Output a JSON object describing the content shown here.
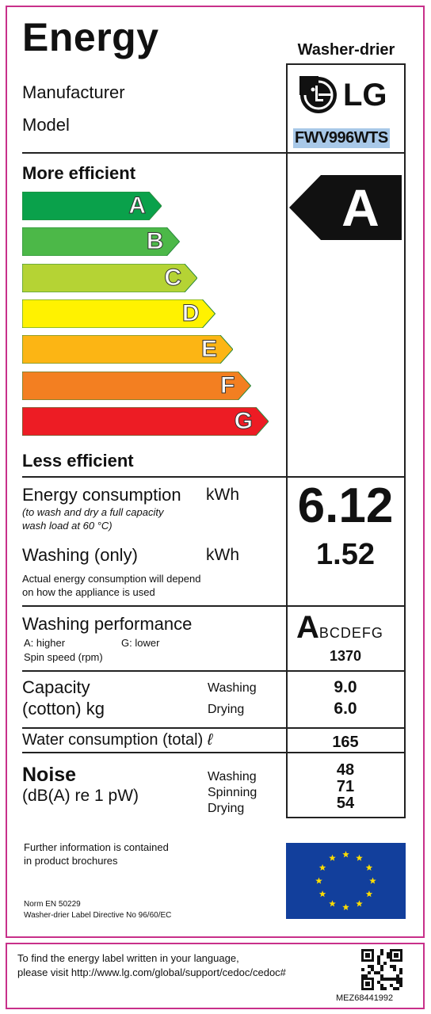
{
  "header": {
    "title": "Energy",
    "appliance_type": "Washer-drier",
    "manufacturer_label": "Manufacturer",
    "model_label": "Model",
    "brand": "LG",
    "model": "FWV996WTS"
  },
  "scale": {
    "more_efficient": "More efficient",
    "less_efficient": "Less efficient",
    "classes": [
      {
        "letter": "A",
        "color": "#0aa14b"
      },
      {
        "letter": "B",
        "color": "#4cb848"
      },
      {
        "letter": "C",
        "color": "#b5d334"
      },
      {
        "letter": "D",
        "color": "#fff200"
      },
      {
        "letter": "E",
        "color": "#fcb514"
      },
      {
        "letter": "F",
        "color": "#f37f21"
      },
      {
        "letter": "G",
        "color": "#ed1c24"
      }
    ],
    "rating": "A"
  },
  "energy": {
    "label": "Energy consumption",
    "unit": "kWh",
    "note_line1": "(to wash and dry a full capacity",
    "note_line2": "wash load at 60 °C)",
    "value": "6.12",
    "washing_label": "Washing (only)",
    "washing_unit": "kWh",
    "washing_value": "1.52",
    "actual_line1": "Actual energy consumption will depend",
    "actual_line2": "on how the appliance is used"
  },
  "performance": {
    "label": "Washing performance",
    "scale_higher": "A: higher",
    "scale_lower": "G: lower",
    "class_big": "A",
    "class_rest": "BCDEFG",
    "spin_label": "Spin speed (rpm)",
    "spin_value": "1370"
  },
  "capacity": {
    "label_line1": "Capacity",
    "label_line2": "(cotton) kg",
    "washing_label": "Washing",
    "drying_label": "Drying",
    "washing_value": "9.0",
    "drying_value": "6.0"
  },
  "water": {
    "label": "Water consumption (total)",
    "unit": "ℓ",
    "value": "165"
  },
  "noise": {
    "label": "Noise",
    "unit": "(dB(A) re 1 pW)",
    "washing_label": "Washing",
    "spinning_label": "Spinning",
    "drying_label": "Drying",
    "washing_value": "48",
    "spinning_value": "71",
    "drying_value": "54"
  },
  "footer": {
    "info_line1": "Further information is contained",
    "info_line2": "in product brochures",
    "norm": "Norm EN 50229",
    "directive": "Washer-drier Label Directive No 96/60/EC",
    "lang_line1": "To find the energy label written in your language,",
    "lang_line2": "please visit http://www.lg.com/global/support/cedoc/cedoc#",
    "code": "MEZ68441992",
    "eu_flag_icon": "eu-flag-icon",
    "qr_icon": "qr-code-icon"
  }
}
